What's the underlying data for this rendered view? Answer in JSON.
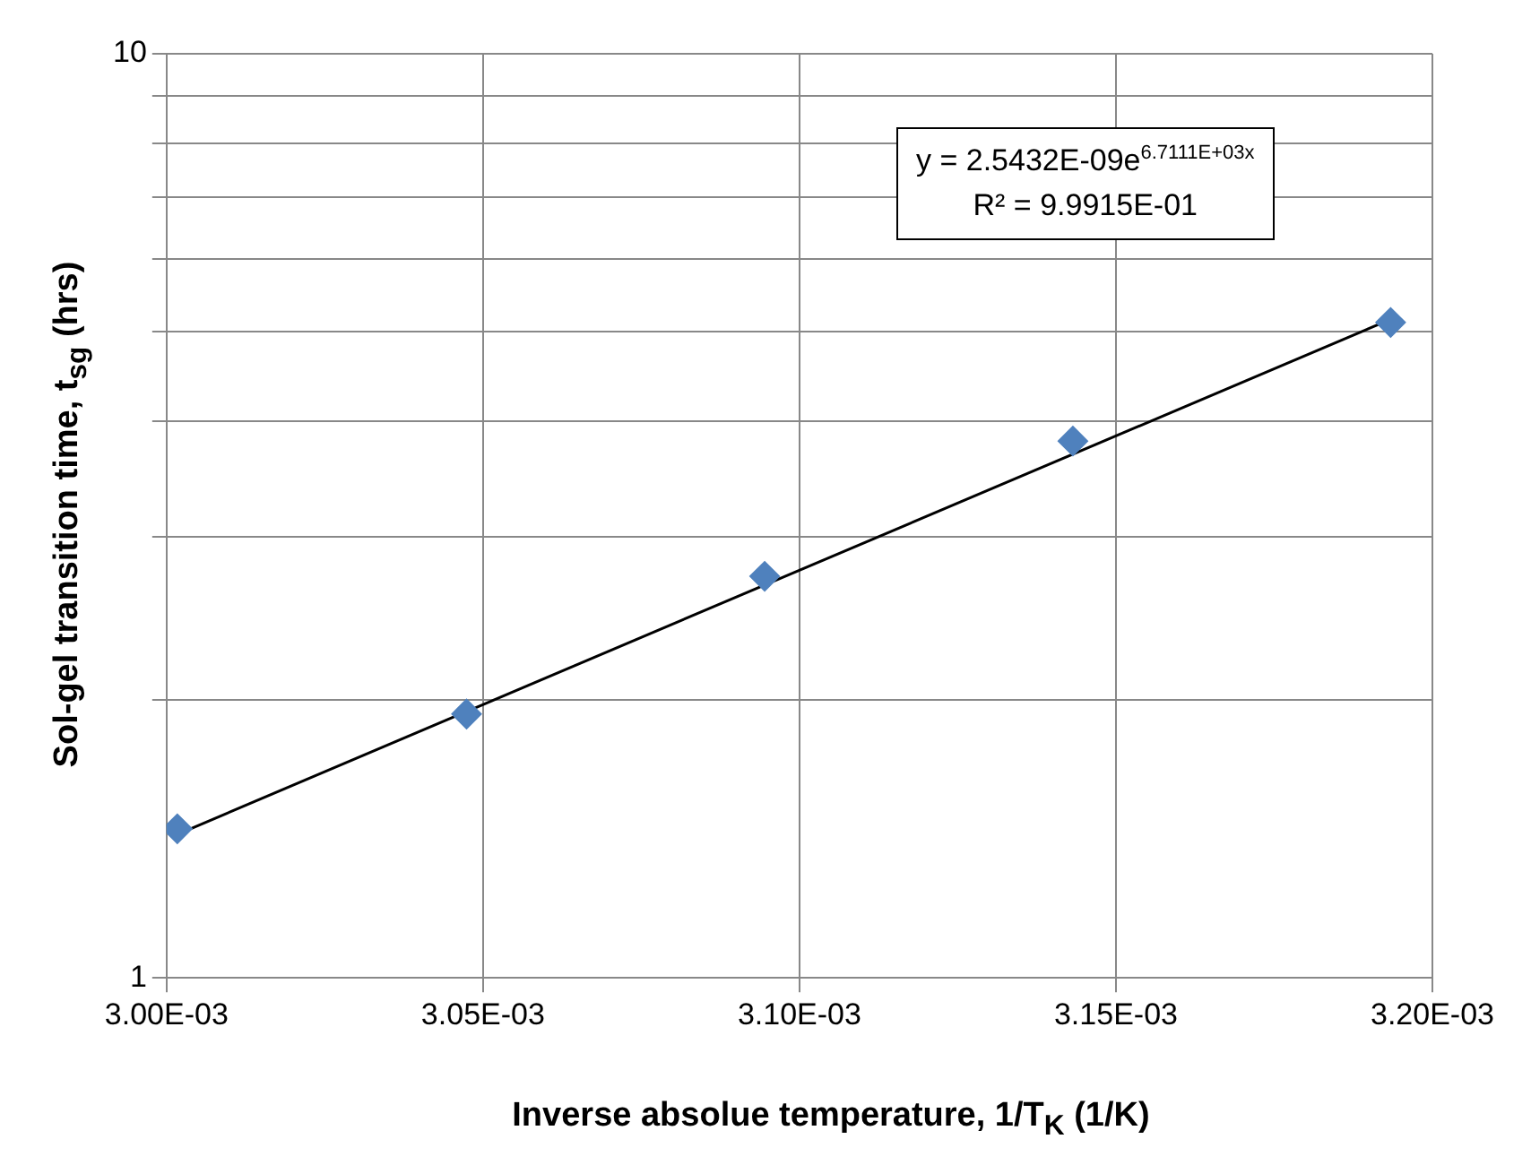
{
  "chart_data": {
    "type": "scatter",
    "xlabel": "Inverse absolue temperature, 1/T$_{K}$ (1/K)",
    "ylabel": "Sol-gel transition time, t$_{sg}$ (hrs)",
    "x": [
      0.0030017,
      0.0030474,
      0.0030945,
      0.0031432,
      0.0031934
    ],
    "series": [
      {
        "color": "#4f81bd",
        "marker": "diamond",
        "values": [
          1.45,
          1.93,
          2.72,
          3.81,
          5.12
        ]
      },
      {
        "type": "line",
        "color": "#000000",
        "marker": "none",
        "x": [
          0.0030017,
          0.0031934
        ],
        "values": [
          1.43,
          5.16
        ]
      }
    ],
    "log": "y",
    "xlim": [
      0.003,
      0.0032
    ],
    "xticks": [
      {
        "value": 0.003,
        "label": "3.00E-03"
      },
      {
        "value": 0.00305,
        "label": "3.05E-03"
      },
      {
        "value": 0.0031,
        "label": "3.10E-03"
      },
      {
        "value": 0.00315,
        "label": "3.15E-03"
      },
      {
        "value": 0.0032,
        "label": "3.20E-03"
      }
    ],
    "ylim": [
      1,
      10
    ],
    "yticks": [
      1,
      {
        "value": 2,
        "label": null
      },
      {
        "value": 3,
        "label": null
      },
      {
        "value": 4,
        "label": null
      },
      {
        "value": 5,
        "label": null
      },
      {
        "value": 6,
        "label": null
      },
      {
        "value": 7,
        "label": null
      },
      {
        "value": 8,
        "label": null
      },
      {
        "value": 9,
        "label": null
      },
      10
    ],
    "grid": true,
    "legend": false,
    "annotations": [
      "y = 2.5432E-09e$^{6.7111E+03x}$\nR² = 9.9915E-01"
    ]
  }
}
